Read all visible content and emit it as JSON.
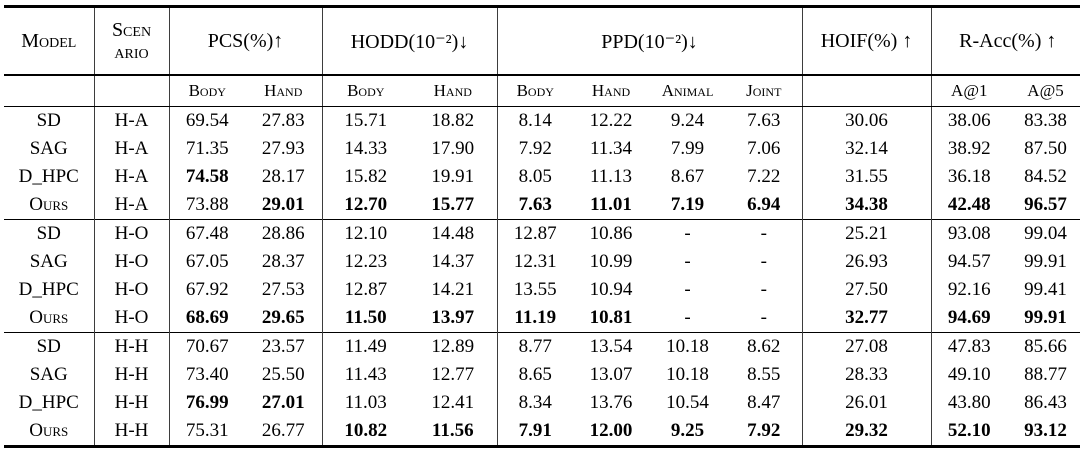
{
  "table": {
    "header": {
      "model": "Model",
      "scenario_lines": [
        "Scen",
        "ario"
      ],
      "groups": [
        {
          "label": "PCS(%)↑",
          "subcols": [
            "Body",
            "Hand"
          ]
        },
        {
          "label": "HODD(10⁻²)↓",
          "subcols": [
            "Body",
            "Hand"
          ]
        },
        {
          "label": "PPD(10⁻²)↓",
          "subcols": [
            "Body",
            "Hand",
            "Animal",
            "Joint"
          ]
        },
        {
          "label": "HOIF(%) ↑",
          "subcols": [
            ""
          ]
        },
        {
          "label": "R-Acc(%) ↑",
          "subcols": [
            "A@1",
            "A@5"
          ]
        }
      ]
    },
    "groups": [
      {
        "scenario": "H-A",
        "rows": [
          {
            "model": "SD",
            "scenario": "H-A",
            "values": [
              "69.54",
              "27.83",
              "15.71",
              "18.82",
              "8.14",
              "12.22",
              "9.24",
              "7.63",
              "30.06",
              "38.06",
              "83.38"
            ],
            "bold": []
          },
          {
            "model": "SAG",
            "scenario": "H-A",
            "values": [
              "71.35",
              "27.93",
              "14.33",
              "17.90",
              "7.92",
              "11.34",
              "7.99",
              "7.06",
              "32.14",
              "38.92",
              "87.50"
            ],
            "bold": []
          },
          {
            "model": "D_HPC",
            "scenario": "H-A",
            "values": [
              "74.58",
              "28.17",
              "15.82",
              "19.91",
              "8.05",
              "11.13",
              "8.67",
              "7.22",
              "31.55",
              "36.18",
              "84.52"
            ],
            "bold": [
              0
            ]
          },
          {
            "model": "Ours",
            "scenario": "H-A",
            "values": [
              "73.88",
              "29.01",
              "12.70",
              "15.77",
              "7.63",
              "11.01",
              "7.19",
              "6.94",
              "34.38",
              "42.48",
              "96.57"
            ],
            "bold": [
              1,
              2,
              3,
              4,
              5,
              6,
              7,
              8,
              9,
              10
            ]
          }
        ]
      },
      {
        "scenario": "H-O",
        "rows": [
          {
            "model": "SD",
            "scenario": "H-O",
            "values": [
              "67.48",
              "28.86",
              "12.10",
              "14.48",
              "12.87",
              "10.86",
              "-",
              "-",
              "25.21",
              "93.08",
              "99.04"
            ],
            "bold": []
          },
          {
            "model": "SAG",
            "scenario": "H-O",
            "values": [
              "67.05",
              "28.37",
              "12.23",
              "14.37",
              "12.31",
              "10.99",
              "-",
              "-",
              "26.93",
              "94.57",
              "99.91"
            ],
            "bold": []
          },
          {
            "model": "D_HPC",
            "scenario": "H-O",
            "values": [
              "67.92",
              "27.53",
              "12.87",
              "14.21",
              "13.55",
              "10.94",
              "-",
              "-",
              "27.50",
              "92.16",
              "99.41"
            ],
            "bold": []
          },
          {
            "model": "Ours",
            "scenario": "H-O",
            "values": [
              "68.69",
              "29.65",
              "11.50",
              "13.97",
              "11.19",
              "10.81",
              "-",
              "-",
              "32.77",
              "94.69",
              "99.91"
            ],
            "bold": [
              0,
              1,
              2,
              3,
              4,
              5,
              8,
              9,
              10
            ]
          }
        ]
      },
      {
        "scenario": "H-H",
        "rows": [
          {
            "model": "SD",
            "scenario": "H-H",
            "values": [
              "70.67",
              "23.57",
              "11.49",
              "12.89",
              "8.77",
              "13.54",
              "10.18",
              "8.62",
              "27.08",
              "47.83",
              "85.66"
            ],
            "bold": []
          },
          {
            "model": "SAG",
            "scenario": "H-H",
            "values": [
              "73.40",
              "25.50",
              "11.43",
              "12.77",
              "8.65",
              "13.07",
              "10.18",
              "8.55",
              "28.33",
              "49.10",
              "88.77"
            ],
            "bold": []
          },
          {
            "model": "D_HPC",
            "scenario": "H-H",
            "values": [
              "76.99",
              "27.01",
              "11.03",
              "12.41",
              "8.34",
              "13.76",
              "10.54",
              "8.47",
              "26.01",
              "43.80",
              "86.43"
            ],
            "bold": [
              0,
              1
            ]
          },
          {
            "model": "Ours",
            "scenario": "H-H",
            "values": [
              "75.31",
              "26.77",
              "10.82",
              "11.56",
              "7.91",
              "12.00",
              "9.25",
              "7.92",
              "29.32",
              "52.10",
              "93.12"
            ],
            "bold": [
              2,
              3,
              4,
              5,
              6,
              7,
              8,
              9,
              10
            ]
          }
        ]
      }
    ]
  }
}
